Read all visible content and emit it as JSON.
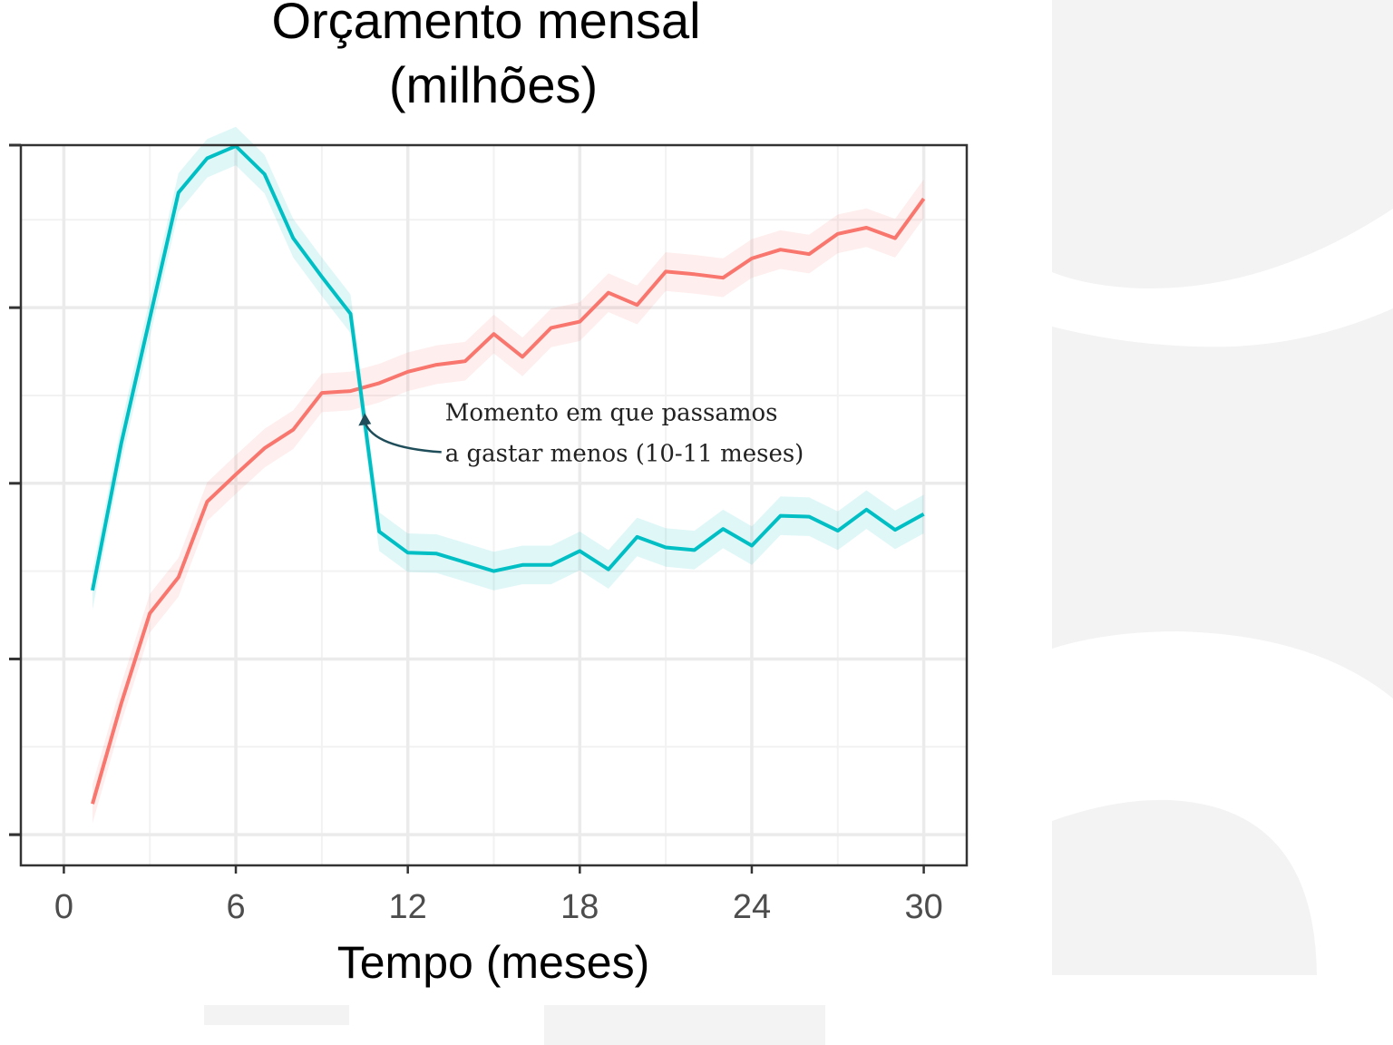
{
  "chart_data": {
    "type": "line",
    "title_lines": [
      "Orçamento mensal",
      "(milhões)"
    ],
    "xlabel": "Tempo (meses)",
    "ylabel": "",
    "xlim": [
      -1.5,
      31.5
    ],
    "ylim": [
      0.15,
      8.35
    ],
    "x_ticks": [
      0,
      6,
      12,
      18,
      24,
      30
    ],
    "x_tick_labels": [
      "0",
      "6",
      "12",
      "18",
      "24",
      "30"
    ],
    "y_ticks": [
      0.5,
      2.5,
      4.5,
      6.5,
      8.5
    ],
    "y_tick_labels": [
      "",
      "",
      "",
      "",
      ""
    ],
    "grid": true,
    "band_halfwidth": 0.22,
    "x": [
      1,
      2,
      3,
      4,
      5,
      6,
      7,
      8,
      9,
      10,
      11,
      12,
      13,
      14,
      15,
      16,
      17,
      18,
      19,
      20,
      21,
      22,
      23,
      24,
      25,
      26,
      27,
      28,
      29,
      30
    ],
    "series": [
      {
        "color": "#F8766D",
        "band_color": "#F8766D",
        "values": [
          0.85,
          1.99,
          3.02,
          3.43,
          4.29,
          4.6,
          4.9,
          5.11,
          5.53,
          5.55,
          5.64,
          5.77,
          5.85,
          5.89,
          6.2,
          5.94,
          6.27,
          6.34,
          6.67,
          6.53,
          6.91,
          6.88,
          6.84,
          7.06,
          7.16,
          7.11,
          7.34,
          7.41,
          7.29,
          7.74
        ]
      },
      {
        "color": "#00BFC4",
        "band_color": "#00BFC4",
        "values": [
          3.28,
          4.95,
          6.38,
          7.81,
          8.2,
          8.34,
          8.02,
          7.29,
          6.85,
          6.43,
          3.95,
          3.71,
          3.7,
          3.6,
          3.5,
          3.57,
          3.57,
          3.73,
          3.52,
          3.89,
          3.77,
          3.74,
          3.98,
          3.79,
          4.13,
          4.12,
          3.96,
          4.2,
          3.97,
          4.15
        ]
      }
    ],
    "annotations": [
      {
        "text_lines": [
          "Momento em que passamos",
          "a gastar menos (10-11 meses)"
        ],
        "x": 13.3,
        "y": 4.7,
        "arrow_to": [
          10.5,
          5.3
        ],
        "color": "#1f4e5a"
      }
    ]
  },
  "colors": {
    "panel_border": "#333333",
    "grid_major": "#ebebeb",
    "grid_minor": "#f2f2f2",
    "watermark": "#f3f3f3"
  }
}
